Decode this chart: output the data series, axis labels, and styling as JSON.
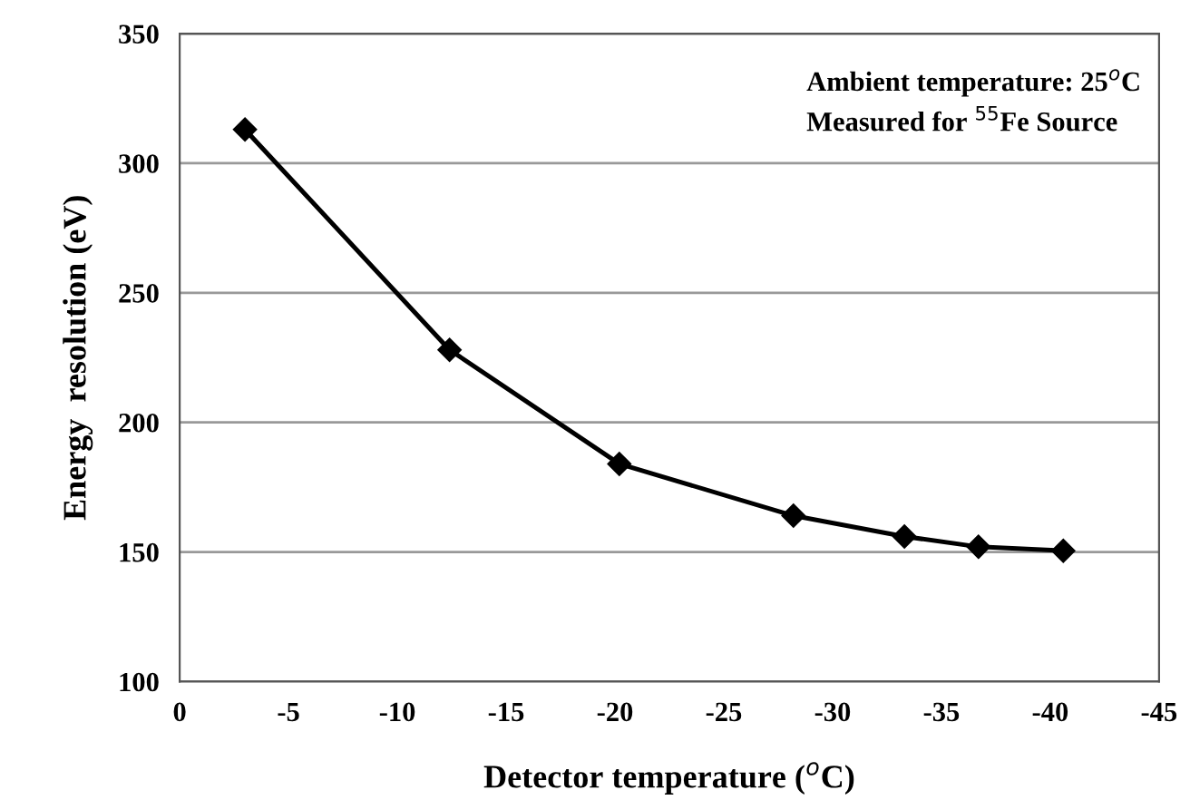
{
  "chart_data": {
    "type": "line",
    "xlabel": "Detector temperature ($^{o}$C)",
    "ylabel": "Energy  resolution (eV)",
    "annotations": [
      "Ambient temperature: 25$^{o}$C",
      "Measured for $^{55}$Fe Source"
    ],
    "x": [
      -3,
      -12.4,
      -20.2,
      -28.2,
      -33.3,
      -36.7,
      -40.6
    ],
    "series": [
      {
        "color": "#000000",
        "values": [
          313,
          228,
          184,
          164,
          156,
          152,
          150.5
        ]
      }
    ],
    "xlim": [
      0,
      -45
    ],
    "xticks": [
      0,
      -5,
      -10,
      -15,
      -20,
      -25,
      -30,
      -35,
      -40,
      -45
    ],
    "ylim": [
      100,
      350
    ],
    "yticks": [
      100,
      150,
      200,
      250,
      300,
      350
    ],
    "grid": "y",
    "marker": "diamond",
    "line_style": "solid",
    "legend": false
  }
}
